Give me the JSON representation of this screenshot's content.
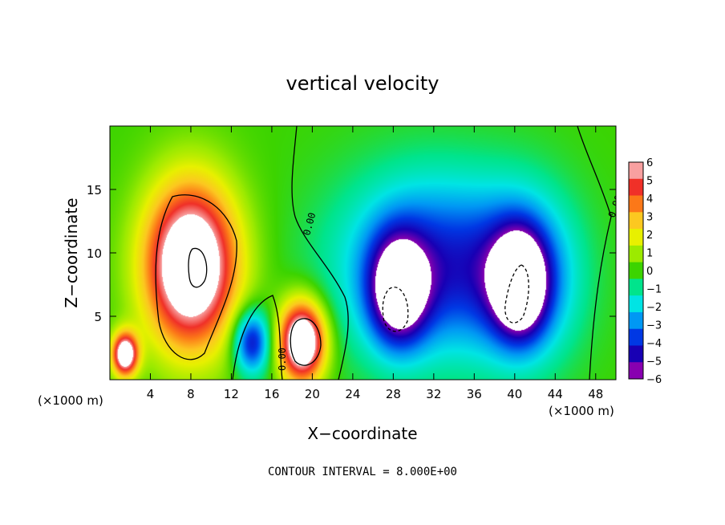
{
  "chart_data": {
    "type": "heatmap",
    "title": "vertical velocity",
    "xlabel": "X−coordinate",
    "ylabel": "Z−coordinate",
    "x_unit_label": "(×1000 m)",
    "y_unit_label": "(×1000 m)",
    "xlim": [
      0,
      50
    ],
    "ylim": [
      0,
      20
    ],
    "x_ticks": [
      4,
      8,
      12,
      16,
      20,
      24,
      28,
      32,
      36,
      40,
      44,
      48
    ],
    "y_ticks": [
      5,
      10,
      15
    ],
    "colorbar": {
      "ticks": [
        "6",
        "5",
        "4",
        "3",
        "2",
        "1",
        "0",
        "−1",
        "−2",
        "−3",
        "−4",
        "−5",
        "−6"
      ],
      "colors": [
        "#f8a0a0",
        "#f03028",
        "#fc7818",
        "#fcc820",
        "#e8f000",
        "#9cea00",
        "#3cd400",
        "#00e48c",
        "#00e4e4",
        "#0098f4",
        "#0038e4",
        "#1800b4",
        "#8800b0"
      ],
      "range": [
        -6,
        6
      ]
    },
    "contour_labels": [
      "0.00",
      "0.00",
      "0.00"
    ],
    "features": [
      {
        "kind": "updraft",
        "x": 8,
        "z": 9,
        "sigma_x": 3.2,
        "sigma_z": 4.5,
        "peak": 9
      },
      {
        "kind": "updraft",
        "x": 1.5,
        "z": 2,
        "sigma_x": 0.9,
        "sigma_z": 1.2,
        "peak": 8
      },
      {
        "kind": "updraft",
        "x": 19,
        "z": 3,
        "sigma_x": 1.6,
        "sigma_z": 2.2,
        "peak": 9
      },
      {
        "kind": "downdraft",
        "x": 14,
        "z": 3,
        "sigma_x": 1.3,
        "sigma_z": 1.8,
        "peak": -5
      },
      {
        "kind": "downdraft",
        "x": 32,
        "z": 9,
        "sigma_x": 6.5,
        "sigma_z": 5,
        "peak": -4.5
      },
      {
        "kind": "downdraft",
        "x": 41,
        "z": 8,
        "sigma_x": 3.5,
        "sigma_z": 4.5,
        "peak": -3.5
      },
      {
        "kind": "downdraft",
        "x": 28.5,
        "z": 7,
        "sigma_x": 2,
        "sigma_z": 3,
        "peak": -6
      },
      {
        "kind": "downdraft",
        "x": 40.5,
        "z": 7.5,
        "sigma_x": 1.8,
        "sigma_z": 2.8,
        "peak": -6
      }
    ]
  },
  "footnote": "CONTOUR INTERVAL = 8.000E+00"
}
